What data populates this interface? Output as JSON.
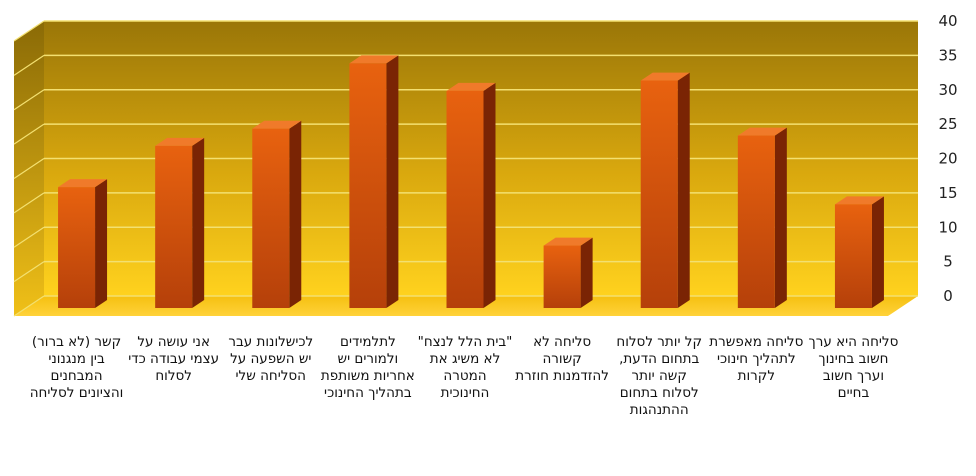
{
  "chart_data": {
    "type": "bar",
    "categories": [
      "קשר (לא ברור) בין מנגנוני המבחנים והציונים לסליחה",
      "אני עושה על עצמי עבודה כדי לסלוח",
      "לכישלונות עבר יש השפעה על הסליחה שלי",
      "לתלמידים ולמורים יש אחריות משותפת בתהליך החינוכי",
      "\"בית הלל לנצח\" לא משיג את המטרה החינוכית",
      "סליחה לא קשורה להזדמנות חוזרת",
      "קל יותר לסלוח בתחום הדעת, קשה יותר לסלוח בתחום ההתנהגות",
      "סליחה מאפשרת לתהליך חינוכי לקרות",
      "סליחה היא ערך חשוב בחינוך וערך חשוב בחיים"
    ],
    "values": [
      17,
      23,
      25.5,
      35,
      31,
      8.5,
      32.5,
      24.5,
      14.5
    ],
    "ylim": [
      0,
      40
    ],
    "yticks": [
      "0",
      "5",
      "10",
      "15",
      "20",
      "25",
      "30",
      "35",
      "40"
    ],
    "grid": true,
    "colors": {
      "bar_front": "#d8520a",
      "bar_side": "#7a2404",
      "bar_top": "#f07a2a",
      "wall_top": "#9a7608",
      "wall_bottom": "#ffd21e",
      "gridline": "#f3e070"
    }
  }
}
